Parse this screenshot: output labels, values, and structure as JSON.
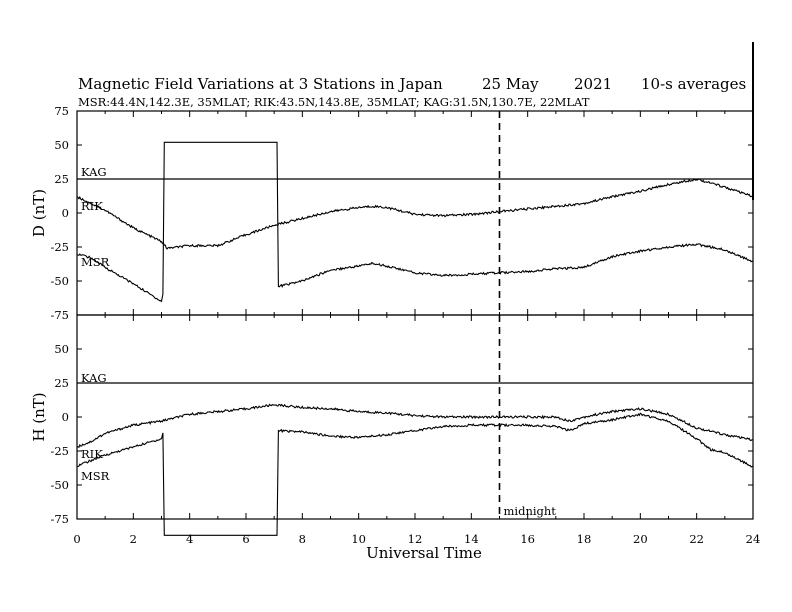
{
  "header": {
    "title": "Magnetic Field Variations at 3 Stations in Japan",
    "date": "25 May",
    "year": "2021",
    "averaging": "10-s averages",
    "stations_line": "MSR:44.4N,142.3E, 35MLAT;  RIK:43.5N,143.8E, 35MLAT;  KAG:31.5N,130.7E, 22MLAT"
  },
  "chart_data": [
    {
      "type": "line",
      "panel": "top",
      "ylabel": "D (nT)",
      "xlabel": "",
      "xlim": [
        0,
        24
      ],
      "ylim": [
        -75,
        75
      ],
      "yticks": [
        -75,
        -50,
        -25,
        0,
        25,
        50,
        75
      ],
      "series": [
        {
          "name": "KAG",
          "x": [
            0,
            24
          ],
          "y": [
            25,
            25
          ]
        },
        {
          "name": "RIK",
          "x": [
            0,
            1,
            2,
            3,
            3.2,
            4,
            5,
            6,
            7,
            8,
            9,
            10,
            10.5,
            11,
            12,
            13,
            14,
            15,
            16,
            17,
            18,
            19,
            20,
            21,
            22,
            23,
            24
          ],
          "y": [
            12,
            2,
            -11,
            -21,
            -26,
            -24,
            -24,
            -16,
            -9,
            -4,
            1,
            4,
            5,
            4,
            -1,
            -2,
            -1,
            1,
            3,
            5,
            7,
            12,
            16,
            21,
            25,
            19,
            12
          ]
        },
        {
          "name": "MSR",
          "x": [
            0,
            0.5,
            1,
            2,
            3,
            3.05,
            3.1,
            7.1,
            7.15,
            8,
            9,
            10,
            10.5,
            11,
            12,
            13,
            14,
            15,
            16,
            17,
            18,
            19,
            20,
            21,
            22,
            23,
            24
          ],
          "y": [
            -30,
            -33,
            -40,
            -52,
            -65,
            -60,
            52,
            52,
            -54,
            -50,
            -42,
            -39,
            -37,
            -39,
            -44,
            -46,
            -45,
            -44,
            -43,
            -41,
            -40,
            -32,
            -28,
            -25,
            -23,
            -27,
            -36
          ]
        }
      ],
      "annotations": [
        {
          "x": 15,
          "style": "dashed"
        }
      ]
    },
    {
      "type": "line",
      "panel": "bottom",
      "ylabel": "H (nT)",
      "xlabel": "Universal Time",
      "xlim": [
        0,
        24
      ],
      "ylim": [
        -75,
        75
      ],
      "xticks": [
        0,
        2,
        4,
        6,
        8,
        10,
        12,
        14,
        16,
        18,
        20,
        22,
        24
      ],
      "yticks": [
        -75,
        -50,
        -25,
        0,
        25,
        50,
        75
      ],
      "series": [
        {
          "name": "KAG",
          "x": [
            0,
            24
          ],
          "y": [
            25,
            25
          ]
        },
        {
          "name": "RIK",
          "x": [
            0,
            0.5,
            1,
            2,
            3,
            4,
            5,
            6,
            7,
            8,
            9,
            10,
            11,
            12,
            13,
            14,
            15,
            16,
            17,
            17.5,
            18,
            19,
            20,
            21,
            22,
            23,
            24
          ],
          "y": [
            -22,
            -18,
            -12,
            -6,
            -3,
            2,
            4,
            6,
            9,
            7,
            6,
            4,
            3,
            1,
            0,
            0,
            0,
            0,
            0,
            -3,
            0,
            4,
            6,
            2,
            -8,
            -13,
            -17
          ]
        },
        {
          "name": "MSR",
          "x": [
            0,
            1,
            2,
            3,
            3.05,
            3.1,
            7.1,
            7.15,
            8,
            9,
            10,
            11,
            12,
            13,
            14,
            15,
            16,
            17,
            17.5,
            18,
            19,
            20,
            21,
            22,
            22.5,
            23,
            24
          ],
          "y": [
            -36,
            -28,
            -22,
            -16,
            -12,
            -87,
            -87,
            -10,
            -11,
            -14,
            -15,
            -13,
            -10,
            -7,
            -6,
            -6,
            -6,
            -7,
            -10,
            -5,
            -2,
            2,
            -3,
            -16,
            -24,
            -26,
            -37
          ]
        }
      ],
      "annotations": [
        {
          "x": 15,
          "style": "dashed",
          "label": "midnight"
        }
      ]
    }
  ]
}
